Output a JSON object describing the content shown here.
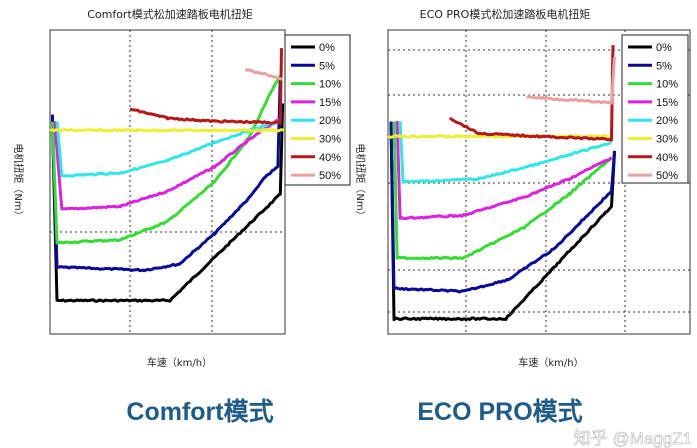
{
  "chart_data": [
    {
      "type": "line",
      "title": "Comfort模式松加速踏板电机扭矩",
      "caption": "Comfort模式",
      "xlabel": "车速（km/h）",
      "ylabel": "电机扭矩（Nm）",
      "xlim": [
        0,
        100
      ],
      "ylim": [
        0,
        100
      ],
      "tick_labels_shown": false,
      "grid": true,
      "legend_placement": "top-right",
      "series": [
        {
          "name": "0%",
          "color": "#000000",
          "points": [
            [
              1,
              70
            ],
            [
              3,
              11
            ],
            [
              51,
              11
            ],
            [
              98,
              46
            ],
            [
              99,
              76
            ]
          ]
        },
        {
          "name": "5%",
          "color": "#0a0a9a",
          "points": [
            [
              1,
              72
            ],
            [
              3,
              22
            ],
            [
              40,
              21
            ],
            [
              55,
              23
            ],
            [
              70,
              33
            ],
            [
              85,
              45
            ],
            [
              92,
              52
            ],
            [
              97,
              55
            ],
            [
              98,
              85
            ]
          ]
        },
        {
          "name": "10%",
          "color": "#33dd33",
          "points": [
            [
              1,
              70
            ],
            [
              3,
              30
            ],
            [
              30,
              31
            ],
            [
              50,
              37
            ],
            [
              70,
              50
            ],
            [
              85,
              65
            ],
            [
              93,
              78
            ],
            [
              98,
              85
            ]
          ]
        },
        {
          "name": "15%",
          "color": "#dd22dd",
          "points": [
            [
              2,
              70
            ],
            [
              5,
              41
            ],
            [
              30,
              42
            ],
            [
              50,
              47
            ],
            [
              70,
              55
            ],
            [
              85,
              64
            ],
            [
              98,
              71
            ]
          ]
        },
        {
          "name": "20%",
          "color": "#33e6e6",
          "points": [
            [
              3,
              70
            ],
            [
              5,
              52
            ],
            [
              30,
              53
            ],
            [
              50,
              57
            ],
            [
              70,
              63
            ],
            [
              85,
              67
            ],
            [
              98,
              70
            ]
          ]
        },
        {
          "name": "30%",
          "color": "#eeee33",
          "points": [
            [
              0,
              67
            ],
            [
              100,
              67
            ]
          ]
        },
        {
          "name": "40%",
          "color": "#b51818",
          "points": [
            [
              34,
              74
            ],
            [
              50,
              71
            ],
            [
              70,
              70
            ],
            [
              98,
              69.5
            ],
            [
              98.5,
              94
            ]
          ]
        },
        {
          "name": "50%",
          "color": "#e8a0a0",
          "points": [
            [
              83,
              87
            ],
            [
              99,
              84
            ]
          ]
        }
      ]
    },
    {
      "type": "line",
      "title": "ECO PRO模式松加速踏板电机扭矩",
      "caption": "ECO PRO模式",
      "xlabel": "车速（km/h）",
      "ylabel": "电机扭矩（Nm）",
      "xlim": [
        0,
        100
      ],
      "ylim": [
        0,
        100
      ],
      "tick_labels_shown": false,
      "grid": true,
      "legend_placement": "top-right",
      "series": [
        {
          "name": "0%",
          "color": "#000000",
          "points": [
            [
              1,
              70
            ],
            [
              2,
              5
            ],
            [
              39,
              5
            ],
            [
              74,
              42
            ],
            [
              75,
              60
            ]
          ]
        },
        {
          "name": "5%",
          "color": "#0a0a9a",
          "points": [
            [
              1,
              70
            ],
            [
              2,
              15
            ],
            [
              25,
              14
            ],
            [
              40,
              18
            ],
            [
              55,
              28
            ],
            [
              74,
              47
            ],
            [
              75,
              60
            ]
          ]
        },
        {
          "name": "10%",
          "color": "#33dd33",
          "points": [
            [
              2,
              70
            ],
            [
              3,
              25
            ],
            [
              25,
              25
            ],
            [
              45,
              35
            ],
            [
              60,
              46
            ],
            [
              74,
              58
            ]
          ]
        },
        {
          "name": "15%",
          "color": "#dd22dd",
          "points": [
            [
              3,
              70
            ],
            [
              4,
              38
            ],
            [
              25,
              39
            ],
            [
              45,
              45
            ],
            [
              60,
              51
            ],
            [
              74,
              58
            ]
          ]
        },
        {
          "name": "20%",
          "color": "#33e6e6",
          "points": [
            [
              4,
              70
            ],
            [
              5,
              50
            ],
            [
              30,
              51
            ],
            [
              50,
              56
            ],
            [
              74,
              63
            ]
          ]
        },
        {
          "name": "30%",
          "color": "#eeee33",
          "points": [
            [
              0,
              65
            ],
            [
              74,
              65
            ]
          ]
        },
        {
          "name": "40%",
          "color": "#b51818",
          "points": [
            [
              20.5,
              71
            ],
            [
              30,
              66
            ],
            [
              50,
              65
            ],
            [
              74,
              64
            ],
            [
              74.5,
              95
            ]
          ]
        },
        {
          "name": "50%",
          "color": "#e8a0a0",
          "points": [
            [
              46,
              78
            ],
            [
              74,
              76
            ],
            [
              75,
              91
            ]
          ]
        }
      ]
    }
  ],
  "watermark": "知乎 @MaggZ1"
}
